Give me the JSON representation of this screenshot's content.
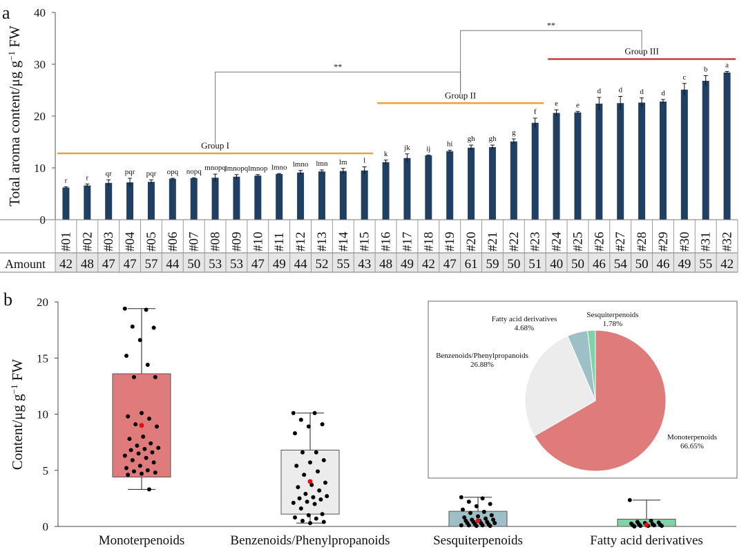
{
  "figure": {
    "panel_a_label": "a",
    "panel_b_label": "b",
    "amount_row_label": "Amount"
  },
  "chart_data": [
    {
      "type": "bar",
      "panel": "a",
      "ylabel": "Total aroma content/μg g⁻¹ FW",
      "ylabel_parts": [
        "Total aroma content/μg g",
        "−1",
        " FW"
      ],
      "ylim": [
        0,
        40
      ],
      "yticks": [
        0,
        10,
        20,
        30,
        40
      ],
      "categories": [
        "#01",
        "#02",
        "#03",
        "#04",
        "#05",
        "#06",
        "#07",
        "#08",
        "#09",
        "#10",
        "#11",
        "#12",
        "#13",
        "#14",
        "#15",
        "#16",
        "#17",
        "#18",
        "#19",
        "#20",
        "#21",
        "#22",
        "#23",
        "#24",
        "#25",
        "#26",
        "#27",
        "#28",
        "#29",
        "#30",
        "#31",
        "#32"
      ],
      "values": [
        6.2,
        6.6,
        7.1,
        7.2,
        7.3,
        7.9,
        8.0,
        8.1,
        8.3,
        8.5,
        8.8,
        9.1,
        9.3,
        9.4,
        9.5,
        11.1,
        11.9,
        12.4,
        13.2,
        13.9,
        14.0,
        15.1,
        18.7,
        20.6,
        20.7,
        22.4,
        22.5,
        22.6,
        22.8,
        25.1,
        26.8,
        28.4
      ],
      "errors": [
        0.15,
        0.3,
        0.6,
        0.8,
        0.4,
        0.1,
        0.1,
        0.7,
        0.4,
        0.2,
        0.1,
        0.4,
        0.3,
        0.5,
        0.7,
        0.4,
        0.8,
        0.1,
        0.2,
        0.5,
        0.4,
        0.5,
        0.9,
        0.6,
        0.2,
        1.2,
        1.3,
        0.9,
        0.4,
        1.2,
        1.0,
        0.2
      ],
      "letters": [
        "r",
        "r",
        "qr",
        "pqr",
        "pqr",
        "opq",
        "nopq",
        "mnopq",
        "lmnopq",
        "lmnop",
        "lmno",
        "lmno",
        "lmn",
        "lm",
        "l",
        "k",
        "jk",
        "ij",
        "hi",
        "gh",
        "gh",
        "g",
        "f",
        "e",
        "e",
        "d",
        "d",
        "d",
        "d",
        "c",
        "b",
        "a"
      ],
      "amounts": [
        42,
        48,
        47,
        47,
        57,
        44,
        50,
        53,
        53,
        47,
        49,
        44,
        52,
        55,
        43,
        48,
        49,
        42,
        47,
        61,
        59,
        50,
        51,
        40,
        50,
        46,
        54,
        50,
        46,
        49,
        55,
        42
      ],
      "groups": [
        {
          "label": "Group I",
          "from": 1,
          "to": 15,
          "y": 12.8,
          "color": "#e3a43c"
        },
        {
          "label": "Group II",
          "from": 16,
          "to": 23,
          "y": 22.5,
          "color": "#e3a43c"
        },
        {
          "label": "Group III",
          "from": 24,
          "to": 32,
          "y": 31.0,
          "color": "#c93a3a"
        }
      ],
      "significance": [
        {
          "label": "**",
          "from_group": "Group I",
          "to_group": "Group II",
          "y": 28.5
        },
        {
          "label": "**",
          "from_group": "Group II",
          "to_group": "Group III",
          "y": 36.5
        }
      ],
      "bar_color": "#1f3f63"
    },
    {
      "type": "box",
      "panel": "b",
      "ylabel": "Content/μg g⁻¹ FW",
      "ylabel_parts": [
        "Content/μg g",
        "−1",
        " FW"
      ],
      "ylim": [
        0,
        20
      ],
      "yticks": [
        0,
        5,
        10,
        15,
        20
      ],
      "categories": [
        "Monoterpenoids",
        "Benzenoids/Phenylpropanoids",
        "Sesquiterpenoids",
        "Fatty acid derivatives"
      ],
      "boxes": [
        {
          "q1": 4.4,
          "q3": 13.6,
          "min": 3.3,
          "max": 19.4,
          "mean": 9.0,
          "color": "#e07b7b",
          "points": [
            19.4,
            19.3,
            17.8,
            17.7,
            16.6,
            15.2,
            14.4,
            13.3,
            13.3,
            10.1,
            9.8,
            9.6,
            9.1,
            8.9,
            8.0,
            7.8,
            7.4,
            7.2,
            7.0,
            6.9,
            6.8,
            6.6,
            6.5,
            6.3,
            6.1,
            5.9,
            5.7,
            5.4,
            5.2,
            5.0,
            4.9,
            4.8,
            4.7,
            4.6,
            3.3
          ]
        },
        {
          "q1": 1.1,
          "q3": 6.8,
          "min": 0.3,
          "max": 10.1,
          "mean": 4.0,
          "color": "#ececec",
          "points": [
            10.1,
            10.1,
            9.5,
            9.1,
            8.9,
            8.3,
            6.6,
            6.6,
            5.9,
            5.7,
            5.4,
            4.9,
            4.6,
            3.9,
            3.7,
            3.5,
            3.2,
            2.9,
            2.7,
            2.6,
            2.5,
            2.4,
            2.2,
            2.1,
            2.0,
            1.6,
            1.1,
            1.0,
            0.8,
            0.7,
            0.5,
            0.4,
            0.3
          ]
        },
        {
          "q1": 0.0,
          "q3": 1.35,
          "min": 0.0,
          "max": 2.6,
          "mean": 0.5,
          "color": "#9dc0c6",
          "points": [
            2.6,
            2.5,
            2.2,
            2.0,
            1.8,
            1.5,
            1.3,
            1.2,
            1.0,
            0.9,
            0.8,
            0.7,
            0.6,
            0.6,
            0.5,
            0.5,
            0.4,
            0.4,
            0.3,
            0.3,
            0.3,
            0.2,
            0.2,
            0.1,
            0.1,
            0.1,
            0.05,
            0.05
          ]
        },
        {
          "q1": 0.0,
          "q3": 0.65,
          "min": 0.0,
          "max": 2.35,
          "mean": 0.15,
          "color": "#7ed3a8",
          "points": [
            2.35,
            0.5,
            0.4,
            0.35,
            0.3,
            0.25,
            0.2,
            0.2,
            0.15,
            0.1,
            0.1,
            0.1,
            0.05,
            0.05,
            0.05,
            0.0
          ]
        }
      ]
    },
    {
      "type": "pie",
      "panel": "b-inset",
      "slices": [
        {
          "label": "Monoterpenoids",
          "value": 66.65,
          "pct_label": "66.65%",
          "color": "#e07b7b"
        },
        {
          "label": "Benzenoids/Phenylpropanoids",
          "value": 26.88,
          "pct_label": "26.88%",
          "color": "#ececec"
        },
        {
          "label": "Fatty acid derivatives",
          "value": 4.68,
          "pct_label": "4.68%",
          "color": "#9dc0c6"
        },
        {
          "label": "Sesquiterpenoids",
          "value": 1.78,
          "pct_label": "1.78%",
          "color": "#7ed3a8"
        }
      ]
    }
  ]
}
